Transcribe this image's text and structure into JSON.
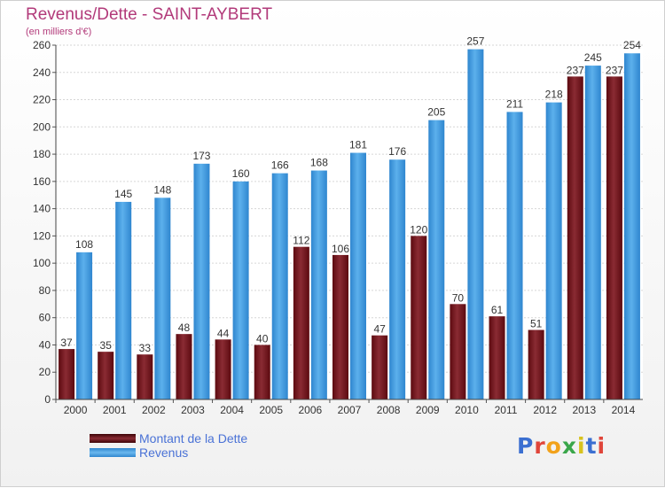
{
  "header": {
    "title": "Revenus/Dette - SAINT-AYBERT",
    "subtitle": "(en milliers d'€)"
  },
  "chart_data": {
    "type": "bar",
    "title": "Revenus/Dette - SAINT-AYBERT",
    "subtitle": "(en milliers d'€)",
    "xlabel": "",
    "ylabel": "",
    "ylim": [
      0,
      260
    ],
    "yticks": [
      0,
      20,
      40,
      60,
      80,
      100,
      120,
      140,
      160,
      180,
      200,
      220,
      240,
      260
    ],
    "grid": true,
    "legend_position": "bottom-left",
    "categories": [
      "2000",
      "2001",
      "2002",
      "2003",
      "2004",
      "2005",
      "2006",
      "2007",
      "2008",
      "2009",
      "2010",
      "2011",
      "2012",
      "2013",
      "2014"
    ],
    "series": [
      {
        "name": "Montant de la Dette",
        "color": "#7a1f25",
        "values": [
          37,
          35,
          33,
          48,
          44,
          40,
          112,
          106,
          47,
          120,
          70,
          61,
          51,
          237,
          237
        ]
      },
      {
        "name": "Revenus",
        "color": "#4da3e6",
        "values": [
          108,
          145,
          148,
          173,
          160,
          166,
          168,
          181,
          176,
          205,
          257,
          211,
          218,
          245,
          254
        ]
      }
    ]
  },
  "legend": {
    "items": [
      {
        "label": "Montant de la Dette",
        "color": "#6b0f14"
      },
      {
        "label": "Revenus",
        "color": "#3f97dc"
      }
    ]
  },
  "logo": {
    "text": "Proxiti",
    "colors": [
      "#3b6fd1",
      "#e0453a",
      "#f2a21b",
      "#3aa64a",
      "#d8c21e",
      "#3b6fd1",
      "#e0453a"
    ]
  }
}
